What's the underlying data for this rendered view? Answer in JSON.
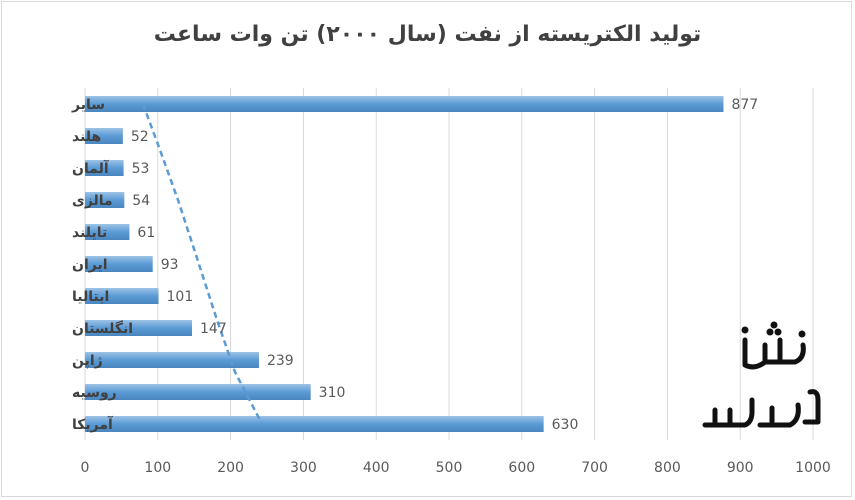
{
  "chart_data": {
    "type": "bar",
    "orientation": "horizontal",
    "title": "تولید الکتریسته از نفت (سال ۲۰۰۰) تن وات ساعت",
    "categories": [
      "سایر",
      "هلند",
      "آلمان",
      "مالزی",
      "تایلند",
      "ایران",
      "ایتالیا",
      "انگلستان",
      "ژاپن",
      "روسیه",
      "آمریکا"
    ],
    "values": [
      877,
      52,
      53,
      54,
      61,
      93,
      101,
      147,
      239,
      310,
      630
    ],
    "xlim": [
      0,
      1000
    ],
    "xticks": [
      0,
      100,
      200,
      300,
      400,
      500,
      600,
      700,
      800,
      900,
      1000
    ],
    "grid": true,
    "data_labels": true,
    "trendline": "dashed",
    "bar_color": "#5b9bd5",
    "trend_color": "#5b9bd5"
  },
  "watermark": {
    "text": "معمار نشان"
  }
}
